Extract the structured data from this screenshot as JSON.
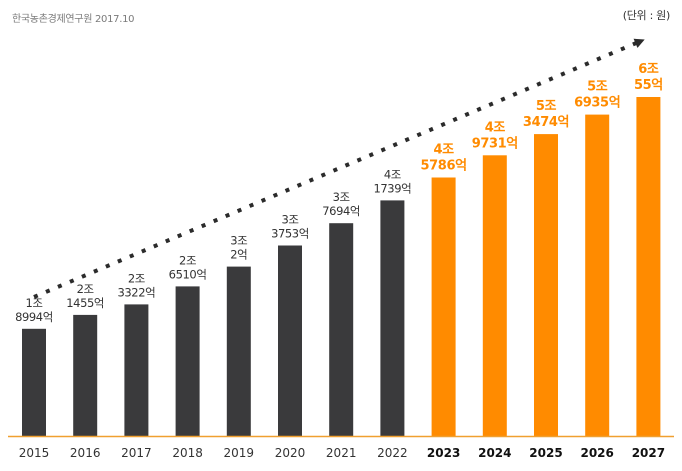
{
  "header": {
    "source": "한국농촌경제연구원 2017.10",
    "unit": "(단위 : 원)"
  },
  "chart_data": {
    "type": "bar",
    "title": "",
    "xlabel": "",
    "ylabel": "",
    "unit_note": "(단위 : 원)",
    "categories": [
      "2015",
      "2016",
      "2017",
      "2018",
      "2019",
      "2020",
      "2021",
      "2022",
      "2023",
      "2024",
      "2025",
      "2026",
      "2027"
    ],
    "values_eok": [
      18994,
      21455,
      23322,
      26510,
      30002,
      33753,
      37694,
      41739,
      45786,
      49731,
      53474,
      56935,
      60055
    ],
    "labels": [
      [
        "1조",
        "8994억"
      ],
      [
        "2조",
        "1455억"
      ],
      [
        "2조",
        "3322억"
      ],
      [
        "2조",
        "6510억"
      ],
      [
        "3조",
        "2억"
      ],
      [
        "3조",
        "3753억"
      ],
      [
        "3조",
        "7694억"
      ],
      [
        "4조",
        "1739억"
      ],
      [
        "4조",
        "5786억"
      ],
      [
        "4조",
        "9731억"
      ],
      [
        "5조",
        "3474억"
      ],
      [
        "5조",
        "6935억"
      ],
      [
        "6조",
        "55억"
      ]
    ],
    "forecast_from": "2023",
    "ylim": [
      0,
      62000
    ],
    "colors": {
      "actual": "#3a3a3c",
      "forecast": "#ff8b00",
      "axis": "#f0a030",
      "trend": "#2b2b2b",
      "label_actual": "#333333",
      "label_forecast": "#ff8b00"
    },
    "annotations": [
      "dotted trend arrow rising toward 2027"
    ]
  }
}
